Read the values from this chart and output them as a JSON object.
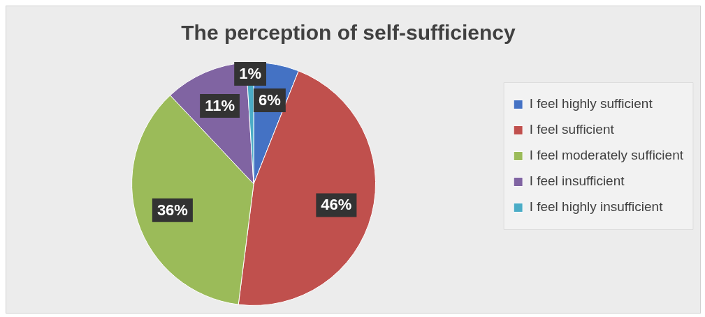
{
  "chart_data": {
    "type": "pie",
    "title": "The perception of self-sufficiency",
    "categories": [
      "I feel highly sufficient",
      "I feel sufficient",
      "I feel moderately sufficient",
      "I feel insufficient",
      "I feel highly insufficient"
    ],
    "values": [
      6,
      46,
      36,
      11,
      1
    ],
    "colors": [
      "#4472c4",
      "#c0504d",
      "#9bbb59",
      "#8064a2",
      "#4bacc6"
    ],
    "value_labels": [
      "6%",
      "46%",
      "36%",
      "11%",
      "1%"
    ],
    "legend": "right"
  }
}
